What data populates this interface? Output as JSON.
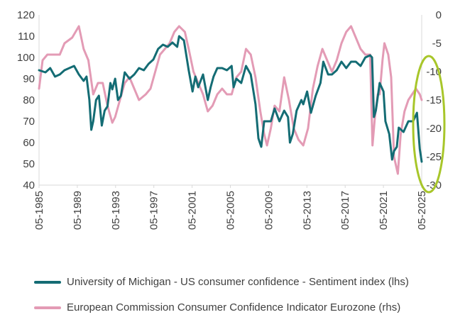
{
  "chart_data": {
    "type": "line",
    "x_ticks": [
      "05-1985",
      "05-1989",
      "05-1993",
      "05-1997",
      "05-2001",
      "05-2005",
      "05-2009",
      "05-2013",
      "05-2017",
      "05-2021",
      "05-2025"
    ],
    "x_range": [
      1985.33,
      2025.4
    ],
    "y_left": {
      "ticks": [
        40,
        50,
        60,
        70,
        80,
        90,
        100,
        110,
        120
      ],
      "range": [
        40,
        120
      ]
    },
    "y_right": {
      "ticks": [
        -30,
        -25,
        -20,
        -15,
        -10,
        -5,
        0
      ],
      "range": [
        -30,
        0
      ]
    },
    "grid": false,
    "legend_position": "bottom",
    "annotation": "ellipse around latest readings (2025)",
    "series": [
      {
        "name": "University of Michigan - US consumer confidence - Sentiment index (lhs)",
        "axis": "left",
        "color": "#146c74",
        "x": [
          1985.33,
          1986.0,
          1986.5,
          1987.0,
          1987.5,
          1988.0,
          1988.5,
          1989.0,
          1989.5,
          1990.0,
          1990.3,
          1990.6,
          1990.8,
          1991.0,
          1991.3,
          1991.6,
          1991.9,
          1992.2,
          1992.5,
          1992.8,
          1993.0,
          1993.3,
          1993.6,
          1993.9,
          1994.3,
          1994.8,
          1995.3,
          1995.8,
          1996.3,
          1996.8,
          1997.3,
          1997.8,
          1998.3,
          1998.8,
          1999.3,
          1999.8,
          2000.0,
          2000.5,
          2001.0,
          2001.4,
          2001.7,
          2002.0,
          2002.5,
          2003.0,
          2003.3,
          2003.6,
          2004.0,
          2004.5,
          2005.0,
          2005.5,
          2005.7,
          2006.0,
          2006.5,
          2007.0,
          2007.5,
          2008.0,
          2008.3,
          2008.6,
          2008.9,
          2009.2,
          2009.6,
          2010.0,
          2010.5,
          2011.0,
          2011.4,
          2011.6,
          2011.9,
          2012.3,
          2012.8,
          2013.0,
          2013.4,
          2013.8,
          2014.3,
          2014.8,
          2015.1,
          2015.6,
          2016.0,
          2016.5,
          2017.0,
          2017.5,
          2018.0,
          2018.5,
          2019.0,
          2019.5,
          2020.0,
          2020.2,
          2020.4,
          2020.6,
          2021.0,
          2021.4,
          2021.6,
          2022.0,
          2022.3,
          2022.5,
          2022.8,
          2023.0,
          2023.5,
          2024.0,
          2024.5,
          2024.9,
          2025.2,
          2025.4
        ],
        "y": [
          94,
          93,
          95,
          91,
          92,
          94,
          95,
          96,
          92,
          89,
          91,
          80,
          66,
          70,
          80,
          82,
          68,
          75,
          77,
          88,
          85,
          90,
          80,
          82,
          93,
          90,
          92,
          95,
          94,
          97,
          99,
          104,
          106,
          105,
          107,
          105,
          110,
          108,
          94,
          84,
          91,
          86,
          92,
          80,
          86,
          91,
          95,
          95,
          94,
          96,
          86,
          90,
          88,
          96,
          92,
          78,
          62,
          58,
          70,
          70,
          70,
          76,
          70,
          75,
          72,
          60,
          64,
          75,
          80,
          78,
          84,
          74,
          82,
          88,
          98,
          92,
          92,
          94,
          98,
          95,
          98,
          98,
          96,
          100,
          101,
          100,
          72,
          75,
          88,
          84,
          70,
          64,
          52,
          56,
          58,
          67,
          65,
          70,
          70,
          74,
          57,
          51
        ]
      },
      {
        "name": "European Commission Consumer Confidence Indicator Eurozone (rhs)",
        "axis": "right",
        "color": "#e39bb5",
        "x": [
          1985.33,
          1985.7,
          1986.2,
          1986.8,
          1987.5,
          1988.0,
          1988.8,
          1989.5,
          1990.0,
          1990.5,
          1991.0,
          1991.5,
          1992.0,
          1992.5,
          1993.0,
          1993.3,
          1993.8,
          1994.3,
          1994.8,
          1995.3,
          1995.8,
          1996.5,
          1997.0,
          1997.5,
          1998.0,
          1998.5,
          1999.0,
          1999.5,
          2000.0,
          2000.6,
          2001.0,
          2001.5,
          2002.0,
          2002.5,
          2003.0,
          2003.5,
          2004.0,
          2004.5,
          2005.0,
          2005.5,
          2006.0,
          2006.5,
          2007.0,
          2007.5,
          2008.0,
          2008.5,
          2008.9,
          2009.2,
          2009.6,
          2010.0,
          2010.5,
          2011.0,
          2011.5,
          2012.0,
          2012.5,
          2013.0,
          2013.5,
          2014.0,
          2014.5,
          2015.0,
          2015.5,
          2016.0,
          2016.5,
          2017.0,
          2017.5,
          2018.0,
          2018.5,
          2019.0,
          2019.5,
          2020.0,
          2020.25,
          2020.5,
          2020.8,
          2021.0,
          2021.3,
          2021.5,
          2021.9,
          2022.2,
          2022.5,
          2022.9,
          2023.2,
          2023.6,
          2024.0,
          2024.4,
          2024.8,
          2025.2,
          2025.4
        ],
        "y": [
          -13,
          -8,
          -7,
          -7,
          -7,
          -5,
          -4,
          -2,
          -6,
          -8,
          -14,
          -12,
          -12,
          -16,
          -19,
          -18,
          -15,
          -12,
          -11,
          -13,
          -15,
          -14,
          -13,
          -10,
          -7,
          -6,
          -5,
          -3,
          -2,
          -3,
          -6,
          -10,
          -12,
          -14,
          -17,
          -16,
          -14,
          -13,
          -14,
          -14,
          -11,
          -10,
          -6,
          -7,
          -11,
          -17,
          -21,
          -23,
          -20,
          -16,
          -17,
          -11,
          -15,
          -20,
          -22,
          -23,
          -20,
          -13,
          -9,
          -6,
          -8,
          -10,
          -8,
          -5,
          -3,
          -2,
          -4,
          -6,
          -7,
          -7,
          -23,
          -18,
          -14,
          -14,
          -8,
          -5,
          -7,
          -11,
          -25,
          -28,
          -21,
          -17,
          -15,
          -14,
          -13,
          -14,
          -15
        ]
      }
    ]
  }
}
